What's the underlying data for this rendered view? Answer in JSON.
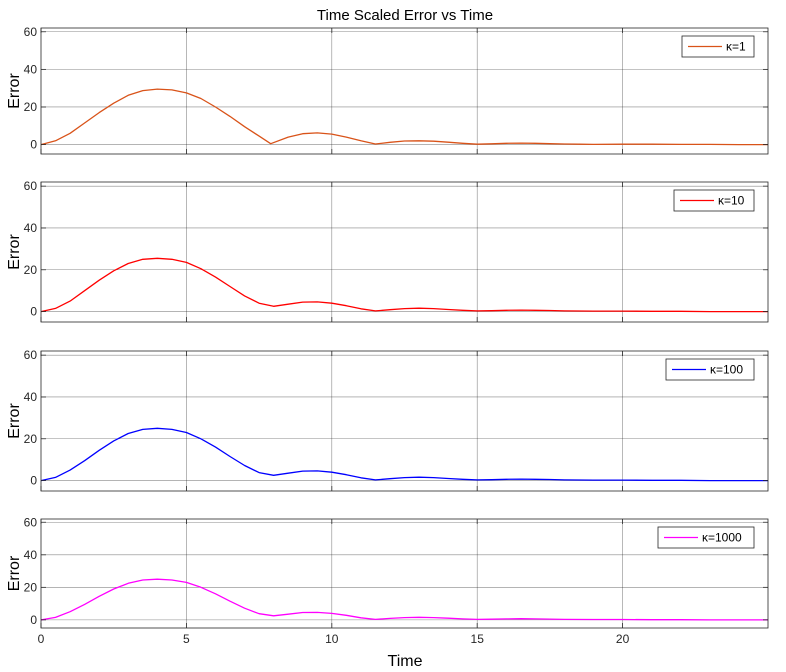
{
  "figure": {
    "title": "Time Scaled Error vs Time",
    "xlabel": "Time"
  },
  "chart_data": [
    {
      "type": "line",
      "ylabel": "Error",
      "xlim": [
        0,
        25
      ],
      "ylim": [
        -5,
        62
      ],
      "xticks": [
        0,
        5,
        10,
        15,
        20
      ],
      "yticks": [
        0,
        20,
        40,
        60
      ],
      "grid": true,
      "legend_position": "top-right",
      "series": [
        {
          "name": "κ=1",
          "color": "#D95319",
          "x": [
            0,
            0.5,
            1,
            1.5,
            2,
            2.5,
            3,
            3.5,
            4,
            4.5,
            5,
            5.5,
            6,
            6.5,
            7,
            7.5,
            7.9,
            8.5,
            9,
            9.5,
            10,
            10.5,
            11,
            11.5,
            12,
            12.5,
            13,
            13.5,
            14,
            14.5,
            15,
            15.5,
            16,
            16.5,
            17,
            17.5,
            18,
            18.5,
            19,
            20,
            21,
            22,
            23,
            24,
            25
          ],
          "y": [
            0,
            2,
            6,
            11.5,
            17,
            22,
            26.2,
            28.7,
            29.5,
            29.1,
            27.5,
            24.5,
            20,
            15,
            9.5,
            4.5,
            0.5,
            4,
            5.8,
            6.2,
            5.6,
            4,
            2,
            0.3,
            1.2,
            1.9,
            2,
            1.8,
            1.3,
            0.7,
            0.2,
            0.4,
            0.7,
            0.8,
            0.7,
            0.5,
            0.3,
            0.2,
            0.1,
            0.2,
            0.2,
            0.1,
            0.1,
            0,
            0
          ]
        }
      ]
    },
    {
      "type": "line",
      "ylabel": "Error",
      "xlim": [
        0,
        25
      ],
      "ylim": [
        -5,
        62
      ],
      "xticks": [
        0,
        5,
        10,
        15,
        20
      ],
      "yticks": [
        0,
        20,
        40,
        60
      ],
      "grid": true,
      "legend_position": "top-right",
      "series": [
        {
          "name": "κ=10",
          "color": "#FF0000",
          "x": [
            0,
            0.5,
            1,
            1.5,
            2,
            2.5,
            3,
            3.5,
            4,
            4.5,
            5,
            5.5,
            6,
            6.5,
            7,
            7.5,
            8,
            8.5,
            9,
            9.5,
            10,
            10.5,
            11,
            11.5,
            12,
            12.5,
            13,
            13.5,
            14,
            14.5,
            15,
            15.5,
            16,
            16.5,
            17,
            17.5,
            18,
            19,
            20,
            21,
            22,
            23,
            24,
            25
          ],
          "y": [
            0,
            1.5,
            5,
            10,
            15,
            19.5,
            23,
            25,
            25.5,
            25,
            23.5,
            20.5,
            16.5,
            12,
            7.5,
            4,
            2.5,
            3.5,
            4.5,
            4.6,
            4,
            2.8,
            1.3,
            0.3,
            0.9,
            1.4,
            1.6,
            1.4,
            1,
            0.6,
            0.3,
            0.4,
            0.6,
            0.7,
            0.6,
            0.5,
            0.3,
            0.2,
            0.2,
            0.1,
            0.1,
            0,
            0,
            0
          ]
        }
      ]
    },
    {
      "type": "line",
      "ylabel": "Error",
      "xlim": [
        0,
        25
      ],
      "ylim": [
        -5,
        62
      ],
      "xticks": [
        0,
        5,
        10,
        15,
        20
      ],
      "yticks": [
        0,
        20,
        40,
        60
      ],
      "grid": true,
      "legend_position": "top-right",
      "series": [
        {
          "name": "κ=100",
          "color": "#0000FF",
          "x": [
            0,
            0.5,
            1,
            1.5,
            2,
            2.5,
            3,
            3.5,
            4,
            4.5,
            5,
            5.5,
            6,
            6.5,
            7,
            7.5,
            8,
            8.5,
            9,
            9.5,
            10,
            10.5,
            11,
            11.5,
            12,
            12.5,
            13,
            13.5,
            14,
            14.5,
            15,
            15.5,
            16,
            16.5,
            17,
            17.5,
            18,
            19,
            20,
            21,
            22,
            23,
            24,
            25
          ],
          "y": [
            0,
            1.5,
            5,
            9.5,
            14.5,
            19,
            22.5,
            24.5,
            25,
            24.5,
            23,
            20,
            16,
            11.5,
            7.2,
            3.8,
            2.5,
            3.5,
            4.5,
            4.6,
            4,
            2.8,
            1.3,
            0.3,
            0.9,
            1.4,
            1.6,
            1.4,
            1,
            0.6,
            0.3,
            0.4,
            0.6,
            0.7,
            0.6,
            0.5,
            0.3,
            0.2,
            0.2,
            0.1,
            0.1,
            0,
            0,
            0
          ]
        }
      ]
    },
    {
      "type": "line",
      "ylabel": "Error",
      "xlim": [
        0,
        25
      ],
      "ylim": [
        -5,
        62
      ],
      "xticks": [
        0,
        5,
        10,
        15,
        20
      ],
      "yticks": [
        0,
        20,
        40,
        60
      ],
      "grid": true,
      "legend_position": "top-right",
      "series": [
        {
          "name": "κ=1000",
          "color": "#FF00FF",
          "x": [
            0,
            0.5,
            1,
            1.5,
            2,
            2.5,
            3,
            3.5,
            4,
            4.5,
            5,
            5.5,
            6,
            6.5,
            7,
            7.5,
            8,
            8.5,
            9,
            9.5,
            10,
            10.5,
            11,
            11.5,
            12,
            12.5,
            13,
            13.5,
            14,
            14.5,
            15,
            15.5,
            16,
            16.5,
            17,
            17.5,
            18,
            19,
            20,
            21,
            22,
            23,
            24,
            25
          ],
          "y": [
            0,
            1.5,
            5,
            9.5,
            14.5,
            19,
            22.5,
            24.5,
            25,
            24.5,
            23,
            20,
            16,
            11.5,
            7.2,
            3.8,
            2.5,
            3.5,
            4.5,
            4.6,
            4,
            2.8,
            1.3,
            0.3,
            0.9,
            1.4,
            1.6,
            1.4,
            1,
            0.6,
            0.3,
            0.4,
            0.6,
            0.7,
            0.6,
            0.5,
            0.3,
            0.2,
            0.2,
            0.1,
            0.1,
            0,
            0,
            0
          ]
        }
      ]
    }
  ]
}
